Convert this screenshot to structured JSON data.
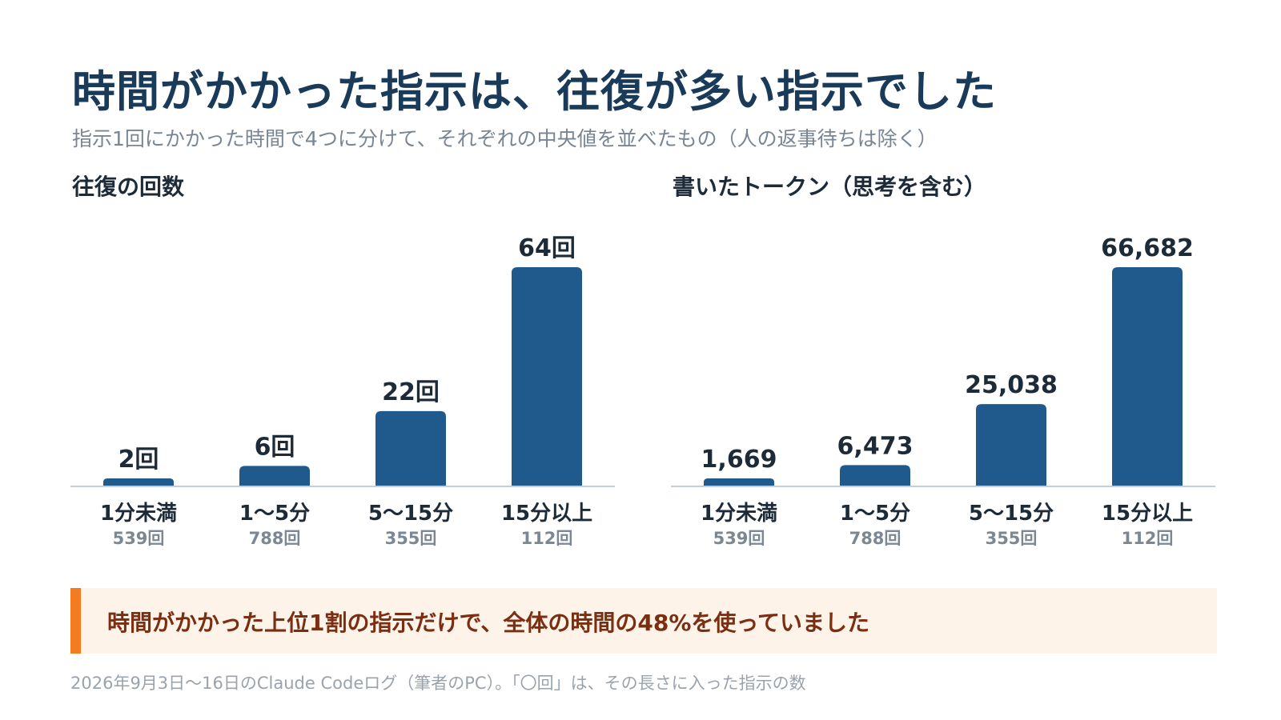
{
  "title": "時間がかかった指示は、往復が多い指示でした",
  "subtitle": "指示1回にかかった時間で4つに分けて、それぞれの中央値を並べたもの（人の返事待ちは除く）",
  "colors": {
    "bar": "#205a8c",
    "title": "#1a3a5a",
    "axis": "#c4ccd6",
    "callout_bg": "#fdf3e8",
    "callout_accent": "#f47b20",
    "callout_text": "#7a2e12"
  },
  "chart_data": [
    {
      "type": "bar",
      "title": "往復の回数",
      "categories": [
        "1分未満",
        "1〜5分",
        "5〜15分",
        "15分以上"
      ],
      "category_counts": [
        "539回",
        "788回",
        "355回",
        "112回"
      ],
      "values": [
        2,
        6,
        22,
        64
      ],
      "value_labels": [
        "2回",
        "6回",
        "22回",
        "64回"
      ],
      "xlabel": "",
      "ylabel": "",
      "ylim": [
        0,
        64
      ],
      "grid": false,
      "legend": "none"
    },
    {
      "type": "bar",
      "title": "書いたトークン（思考を含む）",
      "categories": [
        "1分未満",
        "1〜5分",
        "5〜15分",
        "15分以上"
      ],
      "category_counts": [
        "539回",
        "788回",
        "355回",
        "112回"
      ],
      "values": [
        1669,
        6473,
        25038,
        66682
      ],
      "value_labels": [
        "1,669",
        "6,473",
        "25,038",
        "66,682"
      ],
      "xlabel": "",
      "ylabel": "",
      "ylim": [
        0,
        66682
      ],
      "grid": false,
      "legend": "none"
    }
  ],
  "callout": "時間がかかった上位1割の指示だけで、全体の時間の48%を使っていました",
  "footnote": "2026年9月3日〜16日のClaude Codeログ（筆者のPC）。「〇回」は、その長さに入った指示の数"
}
